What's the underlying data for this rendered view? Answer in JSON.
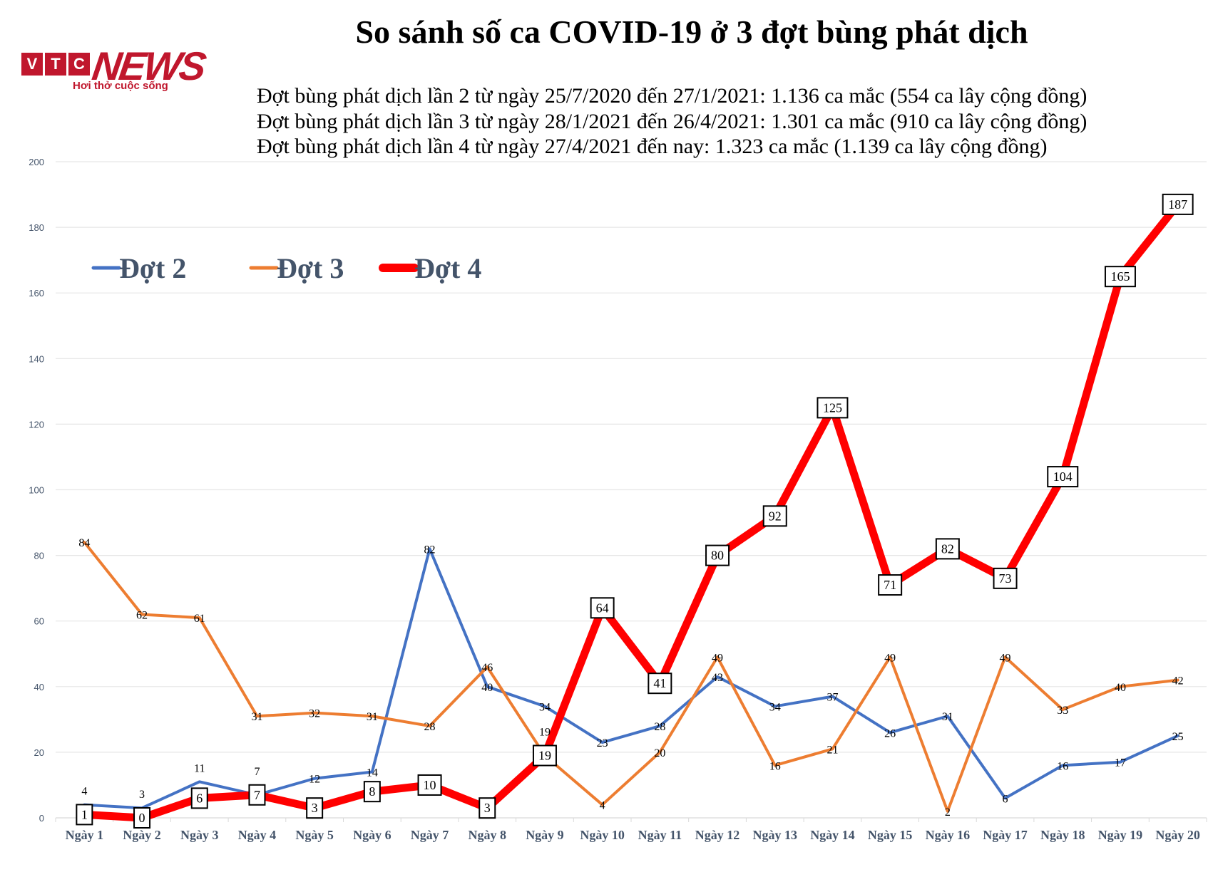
{
  "logo": {
    "letters": [
      "V",
      "T",
      "C"
    ],
    "brand": "NEWS",
    "tagline": "Hơi thở cuộc sống",
    "color": "#c0172d"
  },
  "chart_data": {
    "type": "line",
    "title": "So sánh số ca COVID-19 ở 3 đợt bùng phát dịch",
    "subtitle_lines": [
      "Đợt bùng  phát dịch lần 2 từ ngày 25/7/2020 đến 27/1/2021: 1.136 ca mắc (554 ca lây cộng đồng)",
      "Đợt bùng  phát dịch lần 3 từ ngày 28/1/2021 đến 26/4/2021: 1.301 ca mắc (910 ca lây cộng đồng)",
      "Đợt bùng  phát dịch lần 4 từ ngày 27/4/2021 đến nay: 1.323 ca mắc (1.139 ca lây cộng đồng)"
    ],
    "categories": [
      "Ngày 1",
      "Ngày 2",
      "Ngày 3",
      "Ngày 4",
      "Ngày 5",
      "Ngày 6",
      "Ngày 7",
      "Ngày 8",
      "Ngày 9",
      "Ngày 10",
      "Ngày 11",
      "Ngày 12",
      "Ngày 13",
      "Ngày 14",
      "Ngày 15",
      "Ngày 16",
      "Ngày 17",
      "Ngày 18",
      "Ngày 19",
      "Ngày 20"
    ],
    "ylim": [
      0,
      200
    ],
    "yticks": [
      0,
      20,
      40,
      60,
      80,
      100,
      120,
      140,
      160,
      180,
      200
    ],
    "grid": true,
    "legend_position": "top-left",
    "series": [
      {
        "name": "Đợt 2",
        "color": "#4472c4",
        "values": [
          4,
          3,
          11,
          7,
          12,
          14,
          82,
          40,
          34,
          23,
          28,
          43,
          34,
          37,
          26,
          31,
          6,
          16,
          17,
          25
        ]
      },
      {
        "name": "Đợt 3",
        "color": "#ed7d31",
        "values": [
          84,
          62,
          61,
          31,
          32,
          31,
          28,
          46,
          19,
          4,
          20,
          49,
          16,
          21,
          49,
          2,
          49,
          33,
          40,
          42
        ]
      },
      {
        "name": "Đợt 4",
        "color": "#ff0000",
        "values": [
          1,
          0,
          6,
          7,
          3,
          8,
          10,
          3,
          19,
          64,
          41,
          80,
          92,
          125,
          71,
          82,
          73,
          104,
          165,
          187
        ]
      }
    ]
  }
}
